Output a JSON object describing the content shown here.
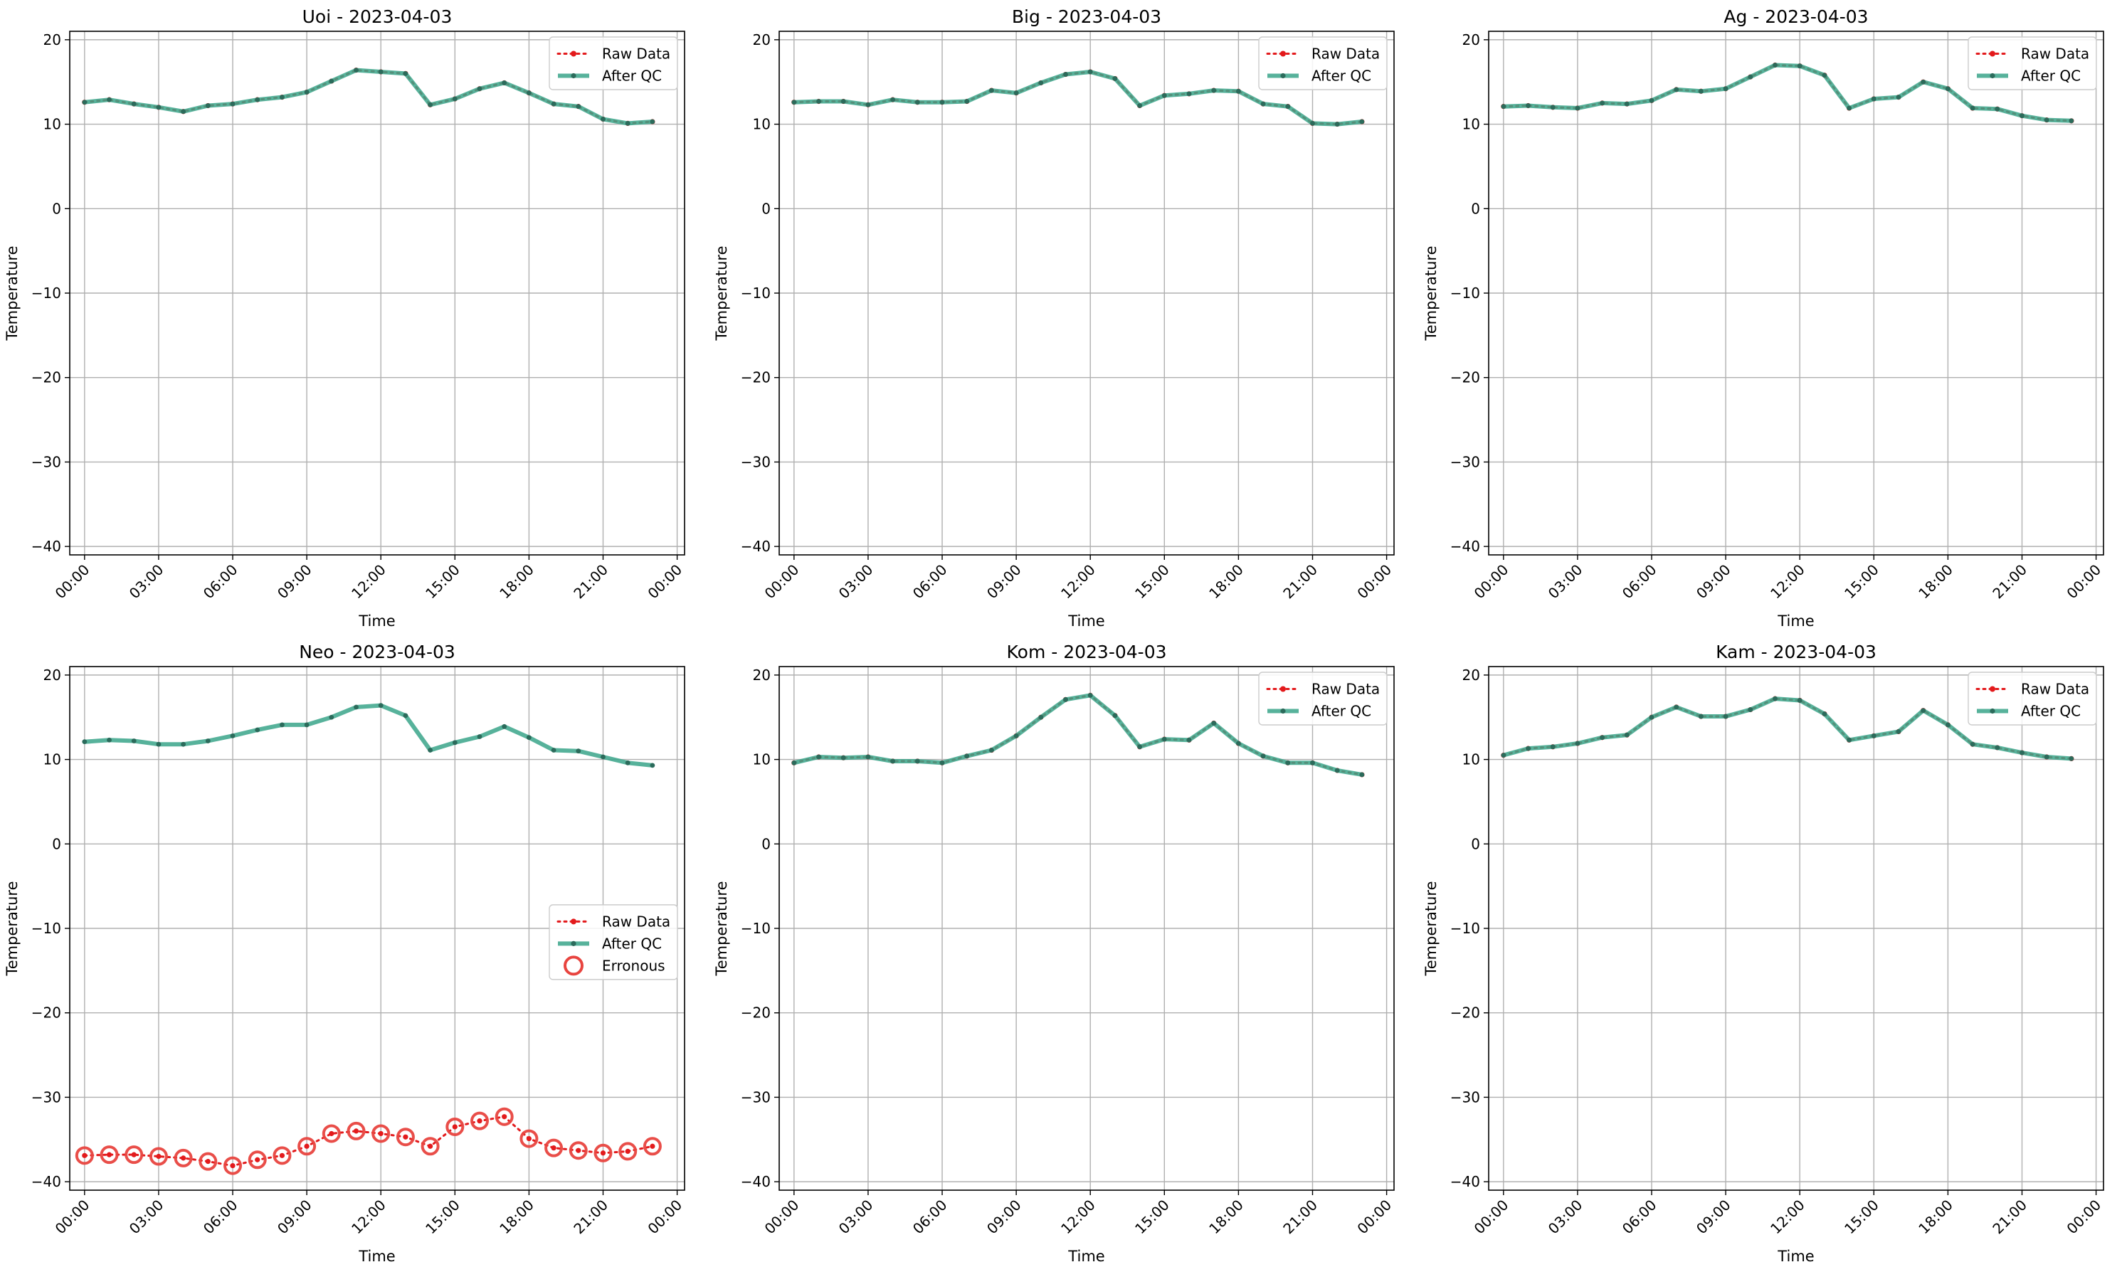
{
  "chart_data": [
    {
      "type": "line",
      "title": "Uoi - 2023-04-03",
      "xlabel": "Time",
      "ylabel": "Temperature",
      "ylim": [
        -41,
        21
      ],
      "yticks": [
        20,
        10,
        0,
        -10,
        -20,
        -30,
        -40
      ],
      "xlim": [
        -0.6,
        24.3
      ],
      "xticks": [
        "00:00",
        "03:00",
        "06:00",
        "09:00",
        "12:00",
        "15:00",
        "18:00",
        "21:00",
        "00:00"
      ],
      "grid": true,
      "legend": {
        "position": "top-right",
        "entries": [
          "Raw Data",
          "After QC"
        ]
      },
      "x": [
        0,
        1,
        2,
        3,
        4,
        5,
        6,
        7,
        8,
        9,
        10,
        11,
        12,
        13,
        14,
        15,
        16,
        17,
        18,
        19,
        20,
        21,
        22,
        23
      ],
      "series": [
        {
          "name": "Raw Data",
          "values": [
            12.6,
            12.9,
            12.4,
            12.0,
            11.5,
            12.2,
            12.4,
            12.9,
            13.2,
            13.8,
            15.1,
            16.4,
            16.2,
            16.0,
            12.3,
            13.0,
            14.2,
            14.9,
            13.7,
            12.4,
            12.1,
            10.6,
            10.1,
            10.3
          ]
        },
        {
          "name": "After QC",
          "values": [
            12.6,
            12.9,
            12.4,
            12.0,
            11.5,
            12.2,
            12.4,
            12.9,
            13.2,
            13.8,
            15.1,
            16.4,
            16.2,
            16.0,
            12.3,
            13.0,
            14.2,
            14.9,
            13.7,
            12.4,
            12.1,
            10.6,
            10.1,
            10.3
          ]
        }
      ]
    },
    {
      "type": "line",
      "title": "Big - 2023-04-03",
      "xlabel": "Time",
      "ylabel": "Temperature",
      "ylim": [
        -41,
        21
      ],
      "yticks": [
        20,
        10,
        0,
        -10,
        -20,
        -30,
        -40
      ],
      "xlim": [
        -0.6,
        24.3
      ],
      "xticks": [
        "00:00",
        "03:00",
        "06:00",
        "09:00",
        "12:00",
        "15:00",
        "18:00",
        "21:00",
        "00:00"
      ],
      "grid": true,
      "legend": {
        "position": "top-right",
        "entries": [
          "Raw Data",
          "After QC"
        ]
      },
      "x": [
        0,
        1,
        2,
        3,
        4,
        5,
        6,
        7,
        8,
        9,
        10,
        11,
        12,
        13,
        14,
        15,
        16,
        17,
        18,
        19,
        20,
        21,
        22,
        23
      ],
      "series": [
        {
          "name": "Raw Data",
          "values": [
            12.6,
            12.7,
            12.7,
            12.3,
            12.9,
            12.6,
            12.6,
            12.7,
            14.0,
            13.7,
            14.9,
            15.9,
            16.2,
            15.4,
            12.2,
            13.4,
            13.6,
            14.0,
            13.9,
            12.4,
            12.1,
            10.1,
            10.0,
            10.3
          ]
        },
        {
          "name": "After QC",
          "values": [
            12.6,
            12.7,
            12.7,
            12.3,
            12.9,
            12.6,
            12.6,
            12.7,
            14.0,
            13.7,
            14.9,
            15.9,
            16.2,
            15.4,
            12.2,
            13.4,
            13.6,
            14.0,
            13.9,
            12.4,
            12.1,
            10.1,
            10.0,
            10.3
          ]
        }
      ]
    },
    {
      "type": "line",
      "title": "Ag - 2023-04-03",
      "xlabel": "Time",
      "ylabel": "Temperature",
      "ylim": [
        -41,
        21
      ],
      "yticks": [
        20,
        10,
        0,
        -10,
        -20,
        -30,
        -40
      ],
      "xlim": [
        -0.6,
        24.3
      ],
      "xticks": [
        "00:00",
        "03:00",
        "06:00",
        "09:00",
        "12:00",
        "15:00",
        "18:00",
        "21:00",
        "00:00"
      ],
      "grid": true,
      "legend": {
        "position": "top-right",
        "entries": [
          "Raw Data",
          "After QC"
        ]
      },
      "x": [
        0,
        1,
        2,
        3,
        4,
        5,
        6,
        7,
        8,
        9,
        10,
        11,
        12,
        13,
        14,
        15,
        16,
        17,
        18,
        19,
        20,
        21,
        22,
        23
      ],
      "series": [
        {
          "name": "Raw Data",
          "values": [
            12.1,
            12.2,
            12.0,
            11.9,
            12.5,
            12.4,
            12.8,
            14.1,
            13.9,
            14.2,
            15.6,
            17.0,
            16.9,
            15.8,
            11.9,
            13.0,
            13.2,
            15.0,
            14.2,
            11.9,
            11.8,
            11.0,
            10.5,
            10.4
          ]
        },
        {
          "name": "After QC",
          "values": [
            12.1,
            12.2,
            12.0,
            11.9,
            12.5,
            12.4,
            12.8,
            14.1,
            13.9,
            14.2,
            15.6,
            17.0,
            16.9,
            15.8,
            11.9,
            13.0,
            13.2,
            15.0,
            14.2,
            11.9,
            11.8,
            11.0,
            10.5,
            10.4
          ]
        }
      ]
    },
    {
      "type": "line",
      "title": "Neo - 2023-04-03",
      "xlabel": "Time",
      "ylabel": "Temperature",
      "ylim": [
        -41,
        21
      ],
      "yticks": [
        20,
        10,
        0,
        -10,
        -20,
        -30,
        -40
      ],
      "xlim": [
        -0.6,
        24.3
      ],
      "xticks": [
        "00:00",
        "03:00",
        "06:00",
        "09:00",
        "12:00",
        "15:00",
        "18:00",
        "21:00",
        "00:00"
      ],
      "grid": true,
      "legend": {
        "position": "center-right",
        "entries": [
          "Raw Data",
          "After QC",
          "Erronous"
        ]
      },
      "x": [
        0,
        1,
        2,
        3,
        4,
        5,
        6,
        7,
        8,
        9,
        10,
        11,
        12,
        13,
        14,
        15,
        16,
        17,
        18,
        19,
        20,
        21,
        22,
        23
      ],
      "series": [
        {
          "name": "Raw Data",
          "values": [
            -36.9,
            -36.8,
            -36.8,
            -37.0,
            -37.2,
            -37.6,
            -38.1,
            -37.4,
            -36.9,
            -35.8,
            -34.3,
            -34.0,
            -34.3,
            -34.7,
            -35.8,
            -33.5,
            -32.8,
            -32.3,
            -34.9,
            -36.0,
            -36.3,
            -36.6,
            -36.4,
            -35.8
          ]
        },
        {
          "name": "After QC",
          "values": [
            12.1,
            12.3,
            12.2,
            11.8,
            11.8,
            12.2,
            12.8,
            13.5,
            14.1,
            14.1,
            15.0,
            16.2,
            16.4,
            15.2,
            11.1,
            12.0,
            12.7,
            13.9,
            12.6,
            11.1,
            11.0,
            10.3,
            9.6,
            9.3
          ]
        },
        {
          "name": "Erronous",
          "values": [
            -36.9,
            -36.8,
            -36.8,
            -37.0,
            -37.2,
            -37.6,
            -38.1,
            -37.4,
            -36.9,
            -35.8,
            -34.3,
            -34.0,
            -34.3,
            -34.7,
            -35.8,
            -33.5,
            -32.8,
            -32.3,
            -34.9,
            -36.0,
            -36.3,
            -36.6,
            -36.4,
            -35.8
          ]
        }
      ]
    },
    {
      "type": "line",
      "title": "Kom - 2023-04-03",
      "xlabel": "Time",
      "ylabel": "Temperature",
      "ylim": [
        -41,
        21
      ],
      "yticks": [
        20,
        10,
        0,
        -10,
        -20,
        -30,
        -40
      ],
      "xlim": [
        -0.6,
        24.3
      ],
      "xticks": [
        "00:00",
        "03:00",
        "06:00",
        "09:00",
        "12:00",
        "15:00",
        "18:00",
        "21:00",
        "00:00"
      ],
      "grid": true,
      "legend": {
        "position": "top-right",
        "entries": [
          "Raw Data",
          "After QC"
        ]
      },
      "x": [
        0,
        1,
        2,
        3,
        4,
        5,
        6,
        7,
        8,
        9,
        10,
        11,
        12,
        13,
        14,
        15,
        16,
        17,
        18,
        19,
        20,
        21,
        22,
        23
      ],
      "series": [
        {
          "name": "Raw Data",
          "values": [
            9.6,
            10.3,
            10.2,
            10.3,
            9.8,
            9.8,
            9.6,
            10.4,
            11.1,
            12.8,
            15.0,
            17.1,
            17.6,
            15.2,
            11.5,
            12.4,
            12.3,
            14.3,
            11.9,
            10.4,
            9.6,
            9.6,
            8.7,
            8.2
          ]
        },
        {
          "name": "After QC",
          "values": [
            9.6,
            10.3,
            10.2,
            10.3,
            9.8,
            9.8,
            9.6,
            10.4,
            11.1,
            12.8,
            15.0,
            17.1,
            17.6,
            15.2,
            11.5,
            12.4,
            12.3,
            14.3,
            11.9,
            10.4,
            9.6,
            9.6,
            8.7,
            8.2
          ]
        }
      ]
    },
    {
      "type": "line",
      "title": "Kam - 2023-04-03",
      "xlabel": "Time",
      "ylabel": "Temperature",
      "ylim": [
        -41,
        21
      ],
      "yticks": [
        20,
        10,
        0,
        -10,
        -20,
        -30,
        -40
      ],
      "xlim": [
        -0.6,
        24.3
      ],
      "xticks": [
        "00:00",
        "03:00",
        "06:00",
        "09:00",
        "12:00",
        "15:00",
        "18:00",
        "21:00",
        "00:00"
      ],
      "grid": true,
      "legend": {
        "position": "top-right",
        "entries": [
          "Raw Data",
          "After QC"
        ]
      },
      "x": [
        0,
        1,
        2,
        3,
        4,
        5,
        6,
        7,
        8,
        9,
        10,
        11,
        12,
        13,
        14,
        15,
        16,
        17,
        18,
        19,
        20,
        21,
        22,
        23
      ],
      "series": [
        {
          "name": "Raw Data",
          "values": [
            10.5,
            11.3,
            11.5,
            11.9,
            12.6,
            12.9,
            15.0,
            16.2,
            15.1,
            15.1,
            15.9,
            17.2,
            17.0,
            15.4,
            12.3,
            12.8,
            13.3,
            15.8,
            14.1,
            11.8,
            11.4,
            10.8,
            10.3,
            10.1
          ]
        },
        {
          "name": "After QC",
          "values": [
            10.5,
            11.3,
            11.5,
            11.9,
            12.6,
            12.9,
            15.0,
            16.2,
            15.1,
            15.1,
            15.9,
            17.2,
            17.0,
            15.4,
            12.3,
            12.8,
            13.3,
            15.8,
            14.1,
            11.8,
            11.4,
            10.8,
            10.3,
            10.1
          ]
        }
      ]
    }
  ],
  "colors": {
    "raw": "#e31a1c",
    "qc_line": "#3aa58a",
    "qc_marker": "#2b6b5b",
    "erroneous": "#e8443f",
    "grid": "#b0b0b0"
  }
}
